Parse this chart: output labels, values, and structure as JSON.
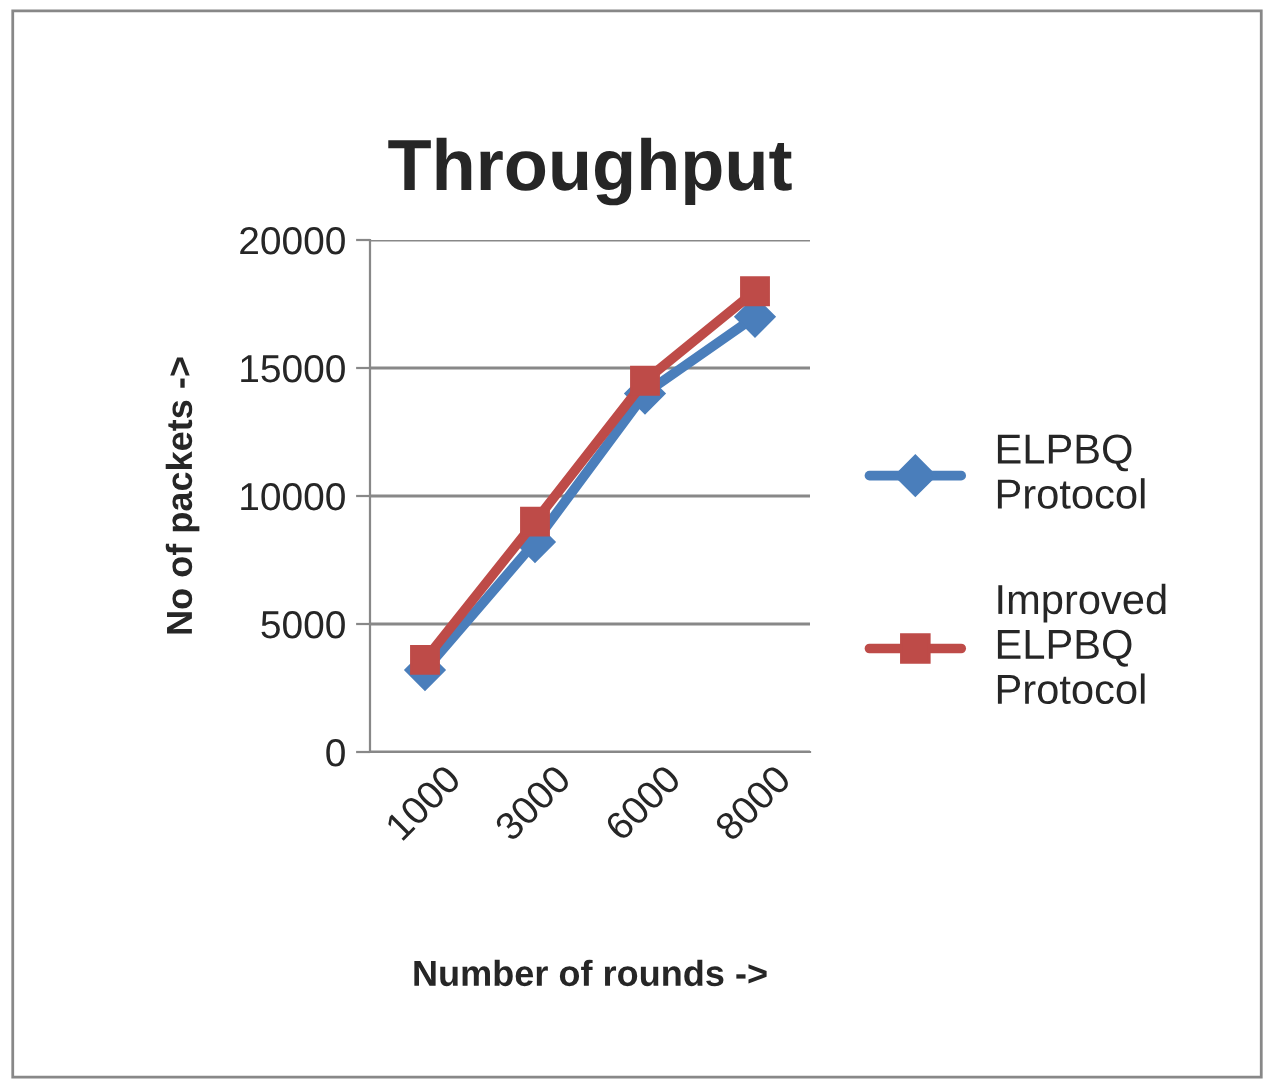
{
  "chart_data": {
    "type": "line",
    "title": "Throughput",
    "xlabel": "Number of rounds ->",
    "ylabel": "No of packets ->",
    "categories": [
      "1000",
      "3000",
      "6000",
      "8000"
    ],
    "series": [
      {
        "name": "ELPBQ Protocol",
        "color": "#4a7ebb",
        "values": [
          3200,
          8200,
          14000,
          17000
        ],
        "marker": "diamond"
      },
      {
        "name": "Improved ELPBQ Protocol",
        "color": "#be4b48",
        "values": [
          3600,
          9000,
          14500,
          18000
        ],
        "marker": "square"
      }
    ],
    "ylim": [
      0,
      20000
    ],
    "yticks": [
      0,
      5000,
      10000,
      15000,
      20000
    ],
    "grid": "y",
    "legend": "right",
    "line_style": "solid"
  }
}
